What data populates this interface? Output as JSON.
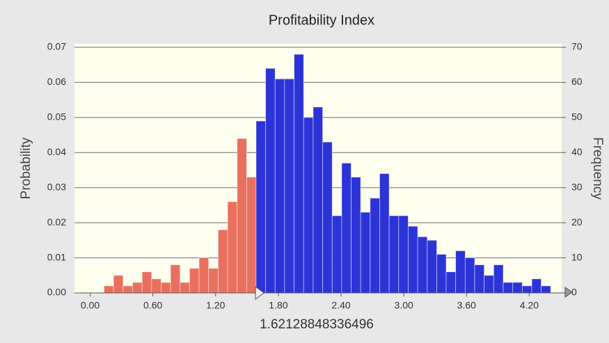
{
  "chart_data": {
    "type": "histogram",
    "title": "Profitability Index",
    "y_label": "Probability",
    "y2_label": "Frequency",
    "threshold": 1.62128848336496,
    "bins": [
      0.133,
      0.224,
      0.315,
      0.406,
      0.497,
      0.588,
      0.678,
      0.769,
      0.86,
      0.951,
      1.042,
      1.133,
      1.224,
      1.315,
      1.406,
      1.497,
      1.587,
      1.678,
      1.769,
      1.86,
      1.951,
      2.042,
      2.133,
      2.224,
      2.315,
      2.406,
      2.496,
      2.587,
      2.678,
      2.769,
      2.86,
      2.951,
      3.042,
      3.133,
      3.224,
      3.315,
      3.405,
      3.496,
      3.587,
      3.678,
      3.769,
      3.86,
      3.951,
      4.042,
      4.133,
      4.224,
      4.314,
      4.405
    ],
    "counts": [
      2,
      5,
      2,
      3,
      6,
      4,
      3,
      8,
      3,
      7,
      10,
      7,
      18,
      26,
      44,
      33,
      49,
      64,
      61,
      61,
      68,
      50,
      53,
      43,
      22,
      37,
      33,
      23,
      27,
      34,
      22,
      22,
      19,
      16,
      15,
      11,
      6,
      12,
      10,
      8,
      5,
      8,
      3,
      3,
      2,
      4,
      2
    ],
    "axis": "y2",
    "color_below_threshold": "#e9705e",
    "color_above_threshold": "#2c34d8",
    "xlim": [
      -0.15,
      4.51
    ],
    "xticks": [
      {
        "value": 0,
        "label": "0.00"
      },
      {
        "value": 0.6,
        "label": "0.60"
      },
      {
        "value": 1.2,
        "label": "1.20"
      },
      {
        "value": 1.8,
        "label": "1.80"
      },
      {
        "value": 2.4,
        "label": "2.40"
      },
      {
        "value": 3,
        "label": "3.00"
      },
      {
        "value": 3.6,
        "label": "3.60"
      },
      {
        "value": 4.2,
        "label": "4.20"
      }
    ],
    "ylim": [
      0,
      0.07
    ],
    "yticks": [
      {
        "value": 0,
        "label": "0.00"
      },
      0.01,
      0.02,
      0.03,
      0.04,
      0.05,
      0.06,
      0.07
    ],
    "y2lim": [
      0,
      70
    ],
    "y2ticks": [
      0,
      10,
      20,
      30,
      40,
      50,
      60,
      70
    ],
    "grid": true
  }
}
